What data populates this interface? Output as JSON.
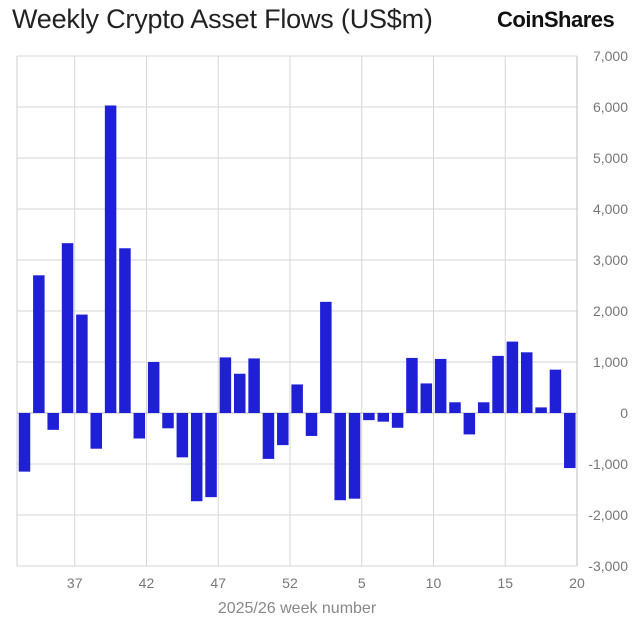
{
  "chart_data": {
    "type": "bar",
    "title": "Weekly Crypto Asset Flows (US$m)",
    "brand": "CoinShares",
    "xlabel": "2025/26 week number",
    "ylabel": "",
    "ylim": [
      -3000,
      7000
    ],
    "yticks": [
      -3000,
      -2000,
      -1000,
      0,
      1000,
      2000,
      3000,
      4000,
      5000,
      6000,
      7000
    ],
    "ytick_labels": [
      "-3,000",
      "-2,000",
      "-1,000",
      "0",
      "1,000",
      "2,000",
      "3,000",
      "4,000",
      "5,000",
      "6,000",
      "7,000"
    ],
    "xtick_labels": [
      "37",
      "42",
      "47",
      "52",
      "5",
      "10",
      "15",
      "20"
    ],
    "grid": true,
    "bar_color": "#1F1FD6",
    "values": [
      -1150,
      2700,
      -330,
      3330,
      1930,
      -700,
      6030,
      3230,
      -500,
      1000,
      -300,
      -870,
      -1730,
      -1650,
      1090,
      770,
      1070,
      -900,
      -630,
      560,
      -450,
      2180,
      -1710,
      -1680,
      -140,
      -170,
      -290,
      1080,
      580,
      1060,
      210,
      -420,
      210,
      1120,
      1400,
      1190,
      110,
      850,
      -1080
    ]
  }
}
